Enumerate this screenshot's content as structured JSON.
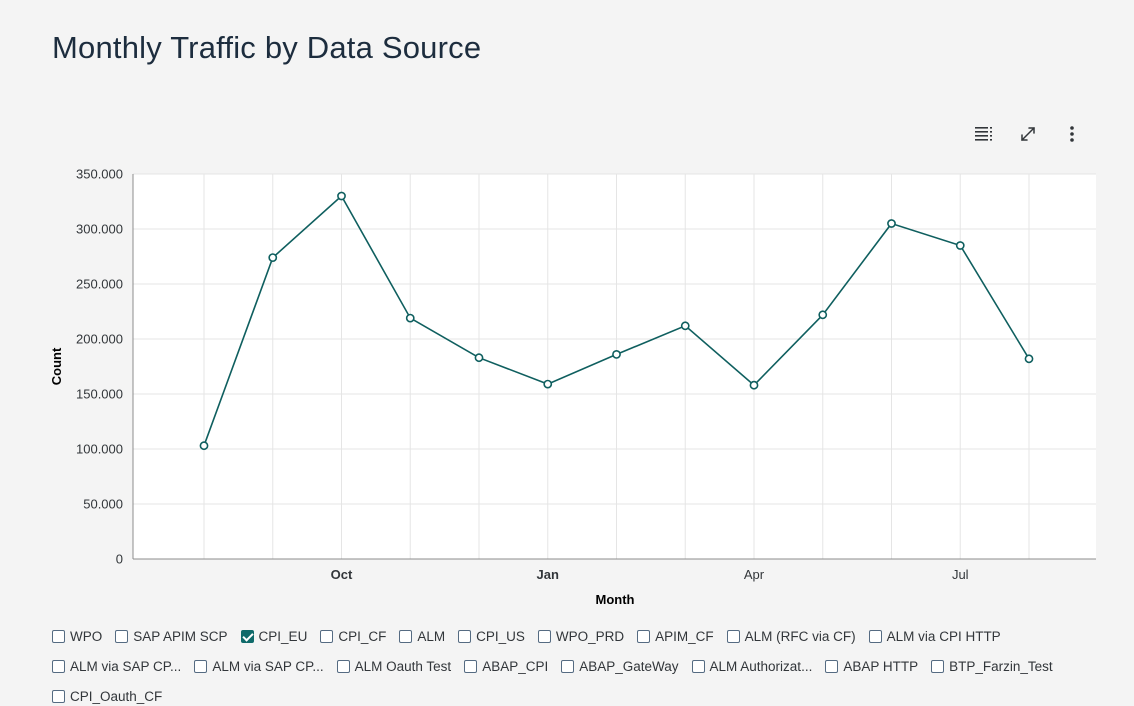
{
  "page": {
    "title": "Monthly Traffic by Data Source"
  },
  "toolbar": {
    "icons": [
      "legend-icon",
      "fullscreen-icon",
      "more-icon"
    ]
  },
  "colors": {
    "series": "#0f5f5f",
    "grid": "#e5e5e5",
    "background": "#f4f4f4"
  },
  "chart_data": {
    "type": "line",
    "title": "Monthly Traffic by Data Source",
    "xlabel": "Month",
    "ylabel": "Count",
    "ylim": [
      0,
      350000
    ],
    "yticks": [
      "0",
      "50.000",
      "100.000",
      "150.000",
      "200.000",
      "250.000",
      "300.000",
      "350.000"
    ],
    "xticks": [
      {
        "label": "Oct",
        "index": 2,
        "bold": true
      },
      {
        "label": "Jan",
        "index": 5,
        "bold": true
      },
      {
        "label": "Apr",
        "index": 8,
        "bold": false
      },
      {
        "label": "Jul",
        "index": 11,
        "bold": false
      }
    ],
    "grid": true,
    "series": [
      {
        "name": "CPI_EU",
        "values": [
          103000,
          274000,
          330000,
          219000,
          183000,
          159000,
          186000,
          212000,
          158000,
          222000,
          305000,
          285000,
          182000
        ]
      }
    ]
  },
  "legend": {
    "placement": "bottom",
    "items": [
      {
        "label": "WPO",
        "checked": false
      },
      {
        "label": "SAP APIM SCP",
        "checked": false
      },
      {
        "label": "CPI_EU",
        "checked": true
      },
      {
        "label": "CPI_CF",
        "checked": false
      },
      {
        "label": "ALM",
        "checked": false
      },
      {
        "label": "CPI_US",
        "checked": false
      },
      {
        "label": "WPO_PRD",
        "checked": false
      },
      {
        "label": "APIM_CF",
        "checked": false
      },
      {
        "label": "ALM (RFC via CF)",
        "checked": false
      },
      {
        "label": "ALM via CPI HTTP",
        "checked": false
      },
      {
        "label": "ALM via SAP CP...",
        "checked": false
      },
      {
        "label": "ALM via SAP CP...",
        "checked": false
      },
      {
        "label": "ALM Oauth Test",
        "checked": false
      },
      {
        "label": "ABAP_CPI",
        "checked": false
      },
      {
        "label": "ABAP_GateWay",
        "checked": false
      },
      {
        "label": "ALM Authorizat...",
        "checked": false
      },
      {
        "label": "ABAP HTTP",
        "checked": false
      },
      {
        "label": "BTP_Farzin_Test",
        "checked": false
      },
      {
        "label": "CPI_Oauth_CF",
        "checked": false
      }
    ]
  }
}
